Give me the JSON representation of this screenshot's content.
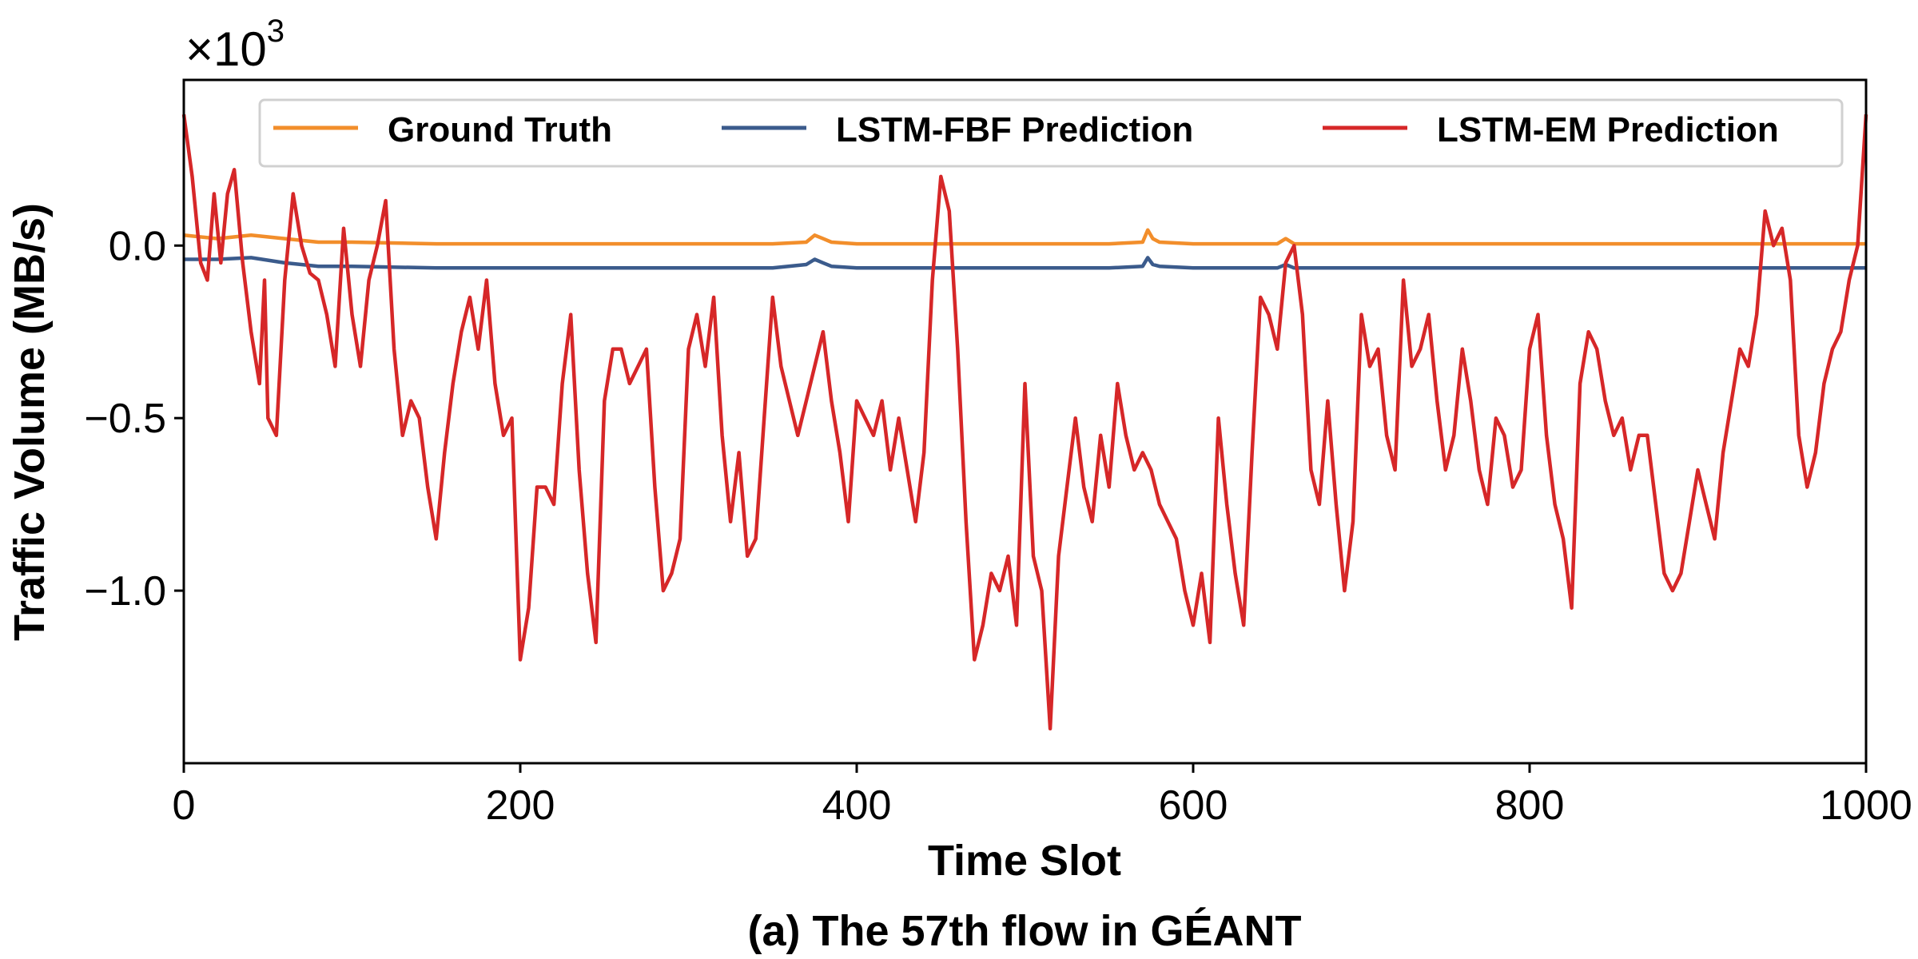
{
  "caption": "(a) The 57th flow in GÉANT",
  "chart_data": {
    "type": "line",
    "xlabel": "Time Slot",
    "ylabel": "Traffic Volume (MB/s)",
    "y_multiplier": {
      "base": "×10",
      "exponent": "3"
    },
    "xlim": [
      0,
      1000
    ],
    "ylim": [
      -1.5,
      0.48
    ],
    "x_ticks": [
      0,
      200,
      400,
      600,
      800,
      1000
    ],
    "x_tick_labels": [
      "0",
      "200",
      "400",
      "600",
      "800",
      "1000"
    ],
    "y_ticks": [
      0.0,
      -0.5,
      -1.0
    ],
    "y_tick_labels": [
      "0.0",
      "−0.5",
      "−1.0"
    ],
    "legend_position": "top",
    "grid": false,
    "series": [
      {
        "name": "Ground Truth",
        "color": "#f28e2b",
        "x": [
          0,
          20,
          40,
          60,
          80,
          100,
          150,
          200,
          250,
          300,
          350,
          370,
          375,
          380,
          385,
          400,
          450,
          500,
          550,
          570,
          573,
          576,
          580,
          600,
          650,
          655,
          660,
          700,
          750,
          800,
          850,
          900,
          950,
          1000
        ],
        "y": [
          0.03,
          0.02,
          0.03,
          0.02,
          0.01,
          0.01,
          0.005,
          0.005,
          0.005,
          0.005,
          0.005,
          0.01,
          0.03,
          0.02,
          0.01,
          0.005,
          0.005,
          0.005,
          0.005,
          0.01,
          0.045,
          0.02,
          0.01,
          0.005,
          0.005,
          0.02,
          0.005,
          0.005,
          0.005,
          0.005,
          0.005,
          0.005,
          0.005,
          0.005
        ]
      },
      {
        "name": "LSTM-FBF Prediction",
        "color": "#3b5b8c",
        "x": [
          0,
          20,
          40,
          60,
          80,
          100,
          150,
          200,
          250,
          300,
          350,
          370,
          375,
          380,
          385,
          400,
          450,
          500,
          550,
          570,
          573,
          576,
          580,
          600,
          650,
          655,
          660,
          700,
          750,
          800,
          850,
          900,
          950,
          1000
        ],
        "y": [
          -0.04,
          -0.04,
          -0.035,
          -0.05,
          -0.06,
          -0.06,
          -0.065,
          -0.065,
          -0.065,
          -0.065,
          -0.065,
          -0.055,
          -0.04,
          -0.05,
          -0.06,
          -0.065,
          -0.065,
          -0.065,
          -0.065,
          -0.06,
          -0.035,
          -0.055,
          -0.06,
          -0.065,
          -0.065,
          -0.055,
          -0.065,
          -0.065,
          -0.065,
          -0.065,
          -0.065,
          -0.065,
          -0.065,
          -0.065
        ]
      },
      {
        "name": "LSTM-EM Prediction",
        "color": "#d62728",
        "x": [
          0,
          5,
          10,
          14,
          18,
          22,
          26,
          30,
          35,
          40,
          45,
          48,
          50,
          55,
          60,
          65,
          70,
          75,
          80,
          85,
          90,
          95,
          100,
          105,
          110,
          115,
          120,
          125,
          130,
          135,
          140,
          145,
          150,
          155,
          160,
          165,
          170,
          175,
          180,
          185,
          190,
          195,
          200,
          205,
          210,
          215,
          220,
          225,
          230,
          235,
          240,
          245,
          250,
          255,
          260,
          265,
          270,
          275,
          280,
          285,
          290,
          295,
          300,
          305,
          310,
          315,
          320,
          325,
          330,
          335,
          340,
          345,
          350,
          355,
          360,
          365,
          370,
          375,
          380,
          385,
          390,
          395,
          400,
          405,
          410,
          415,
          420,
          425,
          430,
          435,
          440,
          445,
          450,
          455,
          460,
          465,
          470,
          475,
          480,
          485,
          490,
          495,
          500,
          505,
          510,
          515,
          520,
          525,
          530,
          535,
          540,
          545,
          550,
          555,
          560,
          565,
          570,
          575,
          580,
          585,
          590,
          595,
          600,
          605,
          610,
          615,
          620,
          625,
          630,
          635,
          640,
          645,
          650,
          655,
          660,
          665,
          670,
          675,
          680,
          685,
          690,
          695,
          700,
          705,
          710,
          715,
          720,
          725,
          730,
          735,
          740,
          745,
          750,
          755,
          760,
          765,
          770,
          775,
          780,
          785,
          790,
          795,
          800,
          805,
          810,
          815,
          820,
          825,
          830,
          835,
          840,
          845,
          850,
          855,
          860,
          865,
          870,
          875,
          880,
          885,
          890,
          895,
          900,
          905,
          910,
          915,
          920,
          925,
          930,
          935,
          940,
          945,
          950,
          955,
          960,
          965,
          970,
          975,
          980,
          985,
          990,
          995,
          1000
        ],
        "y": [
          0.38,
          0.2,
          -0.05,
          -0.1,
          0.15,
          -0.05,
          0.15,
          0.22,
          -0.05,
          -0.25,
          -0.4,
          -0.1,
          -0.5,
          -0.55,
          -0.1,
          0.15,
          0.0,
          -0.08,
          -0.1,
          -0.2,
          -0.35,
          0.05,
          -0.2,
          -0.35,
          -0.1,
          0.0,
          0.13,
          -0.3,
          -0.55,
          -0.45,
          -0.5,
          -0.7,
          -0.85,
          -0.6,
          -0.4,
          -0.25,
          -0.15,
          -0.3,
          -0.1,
          -0.4,
          -0.55,
          -0.5,
          -1.2,
          -1.05,
          -0.7,
          -0.7,
          -0.75,
          -0.4,
          -0.2,
          -0.65,
          -0.95,
          -1.15,
          -0.45,
          -0.3,
          -0.3,
          -0.4,
          -0.35,
          -0.3,
          -0.7,
          -1.0,
          -0.95,
          -0.85,
          -0.3,
          -0.2,
          -0.35,
          -0.15,
          -0.55,
          -0.8,
          -0.6,
          -0.9,
          -0.85,
          -0.5,
          -0.15,
          -0.35,
          -0.45,
          -0.55,
          -0.45,
          -0.35,
          -0.25,
          -0.45,
          -0.6,
          -0.8,
          -0.45,
          -0.5,
          -0.55,
          -0.45,
          -0.65,
          -0.5,
          -0.65,
          -0.8,
          -0.6,
          -0.1,
          0.2,
          0.1,
          -0.3,
          -0.8,
          -1.2,
          -1.1,
          -0.95,
          -1.0,
          -0.9,
          -1.1,
          -0.4,
          -0.9,
          -1.0,
          -1.4,
          -0.9,
          -0.7,
          -0.5,
          -0.7,
          -0.8,
          -0.55,
          -0.7,
          -0.4,
          -0.55,
          -0.65,
          -0.6,
          -0.65,
          -0.75,
          -0.8,
          -0.85,
          -1.0,
          -1.1,
          -0.95,
          -1.15,
          -0.5,
          -0.75,
          -0.95,
          -1.1,
          -0.6,
          -0.15,
          -0.2,
          -0.3,
          -0.05,
          0.0,
          -0.2,
          -0.65,
          -0.75,
          -0.45,
          -0.75,
          -1.0,
          -0.8,
          -0.2,
          -0.35,
          -0.3,
          -0.55,
          -0.65,
          -0.1,
          -0.35,
          -0.3,
          -0.2,
          -0.45,
          -0.65,
          -0.55,
          -0.3,
          -0.45,
          -0.65,
          -0.75,
          -0.5,
          -0.55,
          -0.7,
          -0.65,
          -0.3,
          -0.2,
          -0.55,
          -0.75,
          -0.85,
          -1.05,
          -0.4,
          -0.25,
          -0.3,
          -0.45,
          -0.55,
          -0.5,
          -0.65,
          -0.55,
          -0.55,
          -0.75,
          -0.95,
          -1.0,
          -0.95,
          -0.8,
          -0.65,
          -0.75,
          -0.85,
          -0.6,
          -0.45,
          -0.3,
          -0.35,
          -0.2,
          0.1,
          0.0,
          0.05,
          -0.1,
          -0.55,
          -0.7,
          -0.6,
          -0.4,
          -0.3,
          -0.25,
          -0.1,
          0.0,
          0.38
        ]
      }
    ]
  }
}
